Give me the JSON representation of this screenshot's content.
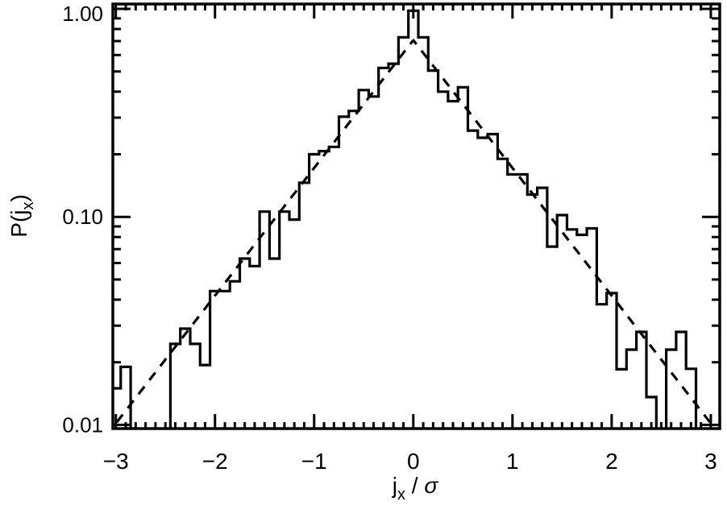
{
  "chart_data": {
    "type": "line",
    "xlabel": {
      "main": "j",
      "sub": "x",
      "rest": " / ",
      "symbol": "σ"
    },
    "ylabel": {
      "main": "P(j",
      "sub": "x",
      "close": ")"
    },
    "xlim": [
      -3.03,
      3.09
    ],
    "ylim": [
      0.0096,
      1.055
    ],
    "yscale": "log",
    "grid": false,
    "x_ticks": [
      -3,
      -2,
      -1,
      0,
      1,
      2,
      3
    ],
    "x_tick_labels": [
      "−3",
      "−2",
      "−1",
      "0",
      "1",
      "2",
      "3"
    ],
    "y_ticks": [
      0.01,
      0.1,
      1.0
    ],
    "y_tick_labels": [
      "0.01",
      "0.10",
      "1.00"
    ],
    "series": [
      {
        "style": "histogram-step",
        "color": "#000000",
        "bin_width": 0.1,
        "bin_centers": [
          -3.0,
          -2.9,
          -2.8,
          -2.7,
          -2.6,
          -2.5,
          -2.4,
          -2.3,
          -2.2,
          -2.1,
          -2.0,
          -1.9,
          -1.8,
          -1.7,
          -1.6,
          -1.5,
          -1.4,
          -1.3,
          -1.2,
          -1.1,
          -1.0,
          -0.9,
          -0.8,
          -0.7,
          -0.6,
          -0.5,
          -0.4,
          -0.3,
          -0.2,
          -0.1,
          0.0,
          0.1,
          0.2,
          0.3,
          0.4,
          0.5,
          0.6,
          0.7,
          0.8,
          0.9,
          1.0,
          1.1,
          1.2,
          1.3,
          1.4,
          1.5,
          1.6,
          1.7,
          1.8,
          1.9,
          2.0,
          2.1,
          2.2,
          2.3,
          2.4,
          2.5,
          2.6,
          2.7,
          2.8,
          2.9
        ],
        "values": [
          0.015,
          0.019,
          0,
          0,
          0,
          0,
          0.0245,
          0.029,
          0.0245,
          0.0194,
          0.044,
          0.044,
          0.049,
          0.063,
          0.058,
          0.106,
          0.063,
          0.106,
          0.097,
          0.146,
          0.2,
          0.207,
          0.217,
          0.303,
          0.323,
          0.407,
          0.379,
          0.52,
          0.545,
          0.73,
          0.98,
          0.73,
          0.505,
          0.4,
          0.36,
          0.42,
          0.26,
          0.24,
          0.25,
          0.19,
          0.16,
          0.16,
          0.128,
          0.138,
          0.072,
          0.102,
          0.087,
          0.082,
          0.088,
          0.038,
          0.043,
          0.0185,
          0.023,
          0.028,
          0.0136,
          0,
          0.023,
          0.028,
          0.0186,
          0
        ]
      },
      {
        "style": "dashed-fit",
        "color": "#000000",
        "function": "A*exp(-k*|x|)",
        "A": 0.707,
        "k": 1.414
      }
    ]
  }
}
